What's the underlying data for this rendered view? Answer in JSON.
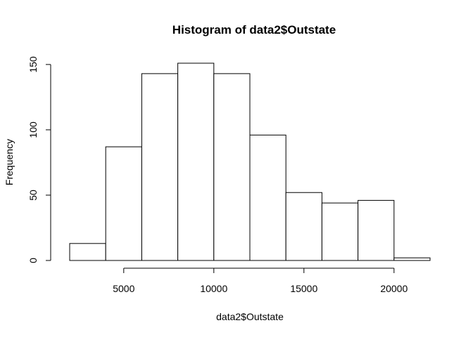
{
  "chart_data": {
    "type": "bar",
    "title": "Histogram of data2$Outstate",
    "xlabel": "data2$Outstate",
    "ylabel": "Frequency",
    "bins": [
      {
        "start": 2000,
        "end": 4000,
        "count": 13
      },
      {
        "start": 4000,
        "end": 6000,
        "count": 87
      },
      {
        "start": 6000,
        "end": 8000,
        "count": 143
      },
      {
        "start": 8000,
        "end": 10000,
        "count": 151
      },
      {
        "start": 10000,
        "end": 12000,
        "count": 143
      },
      {
        "start": 12000,
        "end": 14000,
        "count": 96
      },
      {
        "start": 14000,
        "end": 16000,
        "count": 52
      },
      {
        "start": 16000,
        "end": 18000,
        "count": 44
      },
      {
        "start": 18000,
        "end": 20000,
        "count": 46
      },
      {
        "start": 20000,
        "end": 22000,
        "count": 2
      }
    ],
    "xticks": [
      5000,
      10000,
      15000,
      20000
    ],
    "yticks": [
      0,
      50,
      100,
      150
    ],
    "xlim": [
      2000,
      22000
    ],
    "ylim": [
      0,
      151
    ],
    "grid": false
  }
}
